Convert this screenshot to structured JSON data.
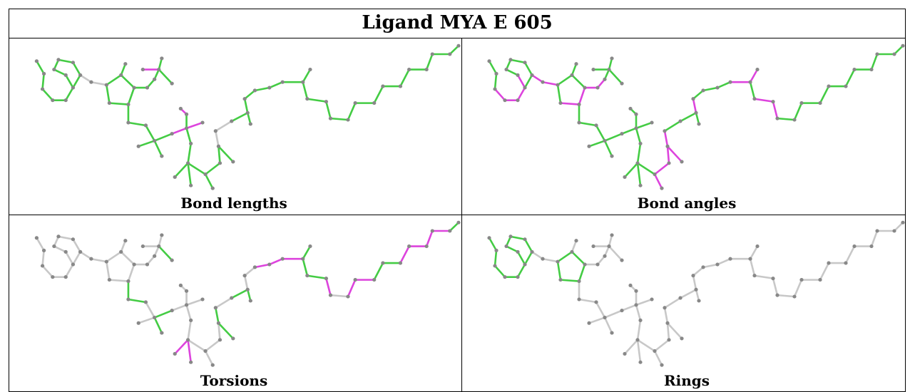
{
  "title": "Ligand MYA E 605",
  "panels": [
    {
      "caption": "Bond lengths"
    },
    {
      "caption": "Bond angles"
    },
    {
      "caption": "Torsions"
    },
    {
      "caption": "Rings"
    }
  ],
  "colors": {
    "green": "#44cc44",
    "magenta": "#dd44dd",
    "gray": "#c8c8c8",
    "atom": "#888888",
    "border": "#000000"
  }
}
